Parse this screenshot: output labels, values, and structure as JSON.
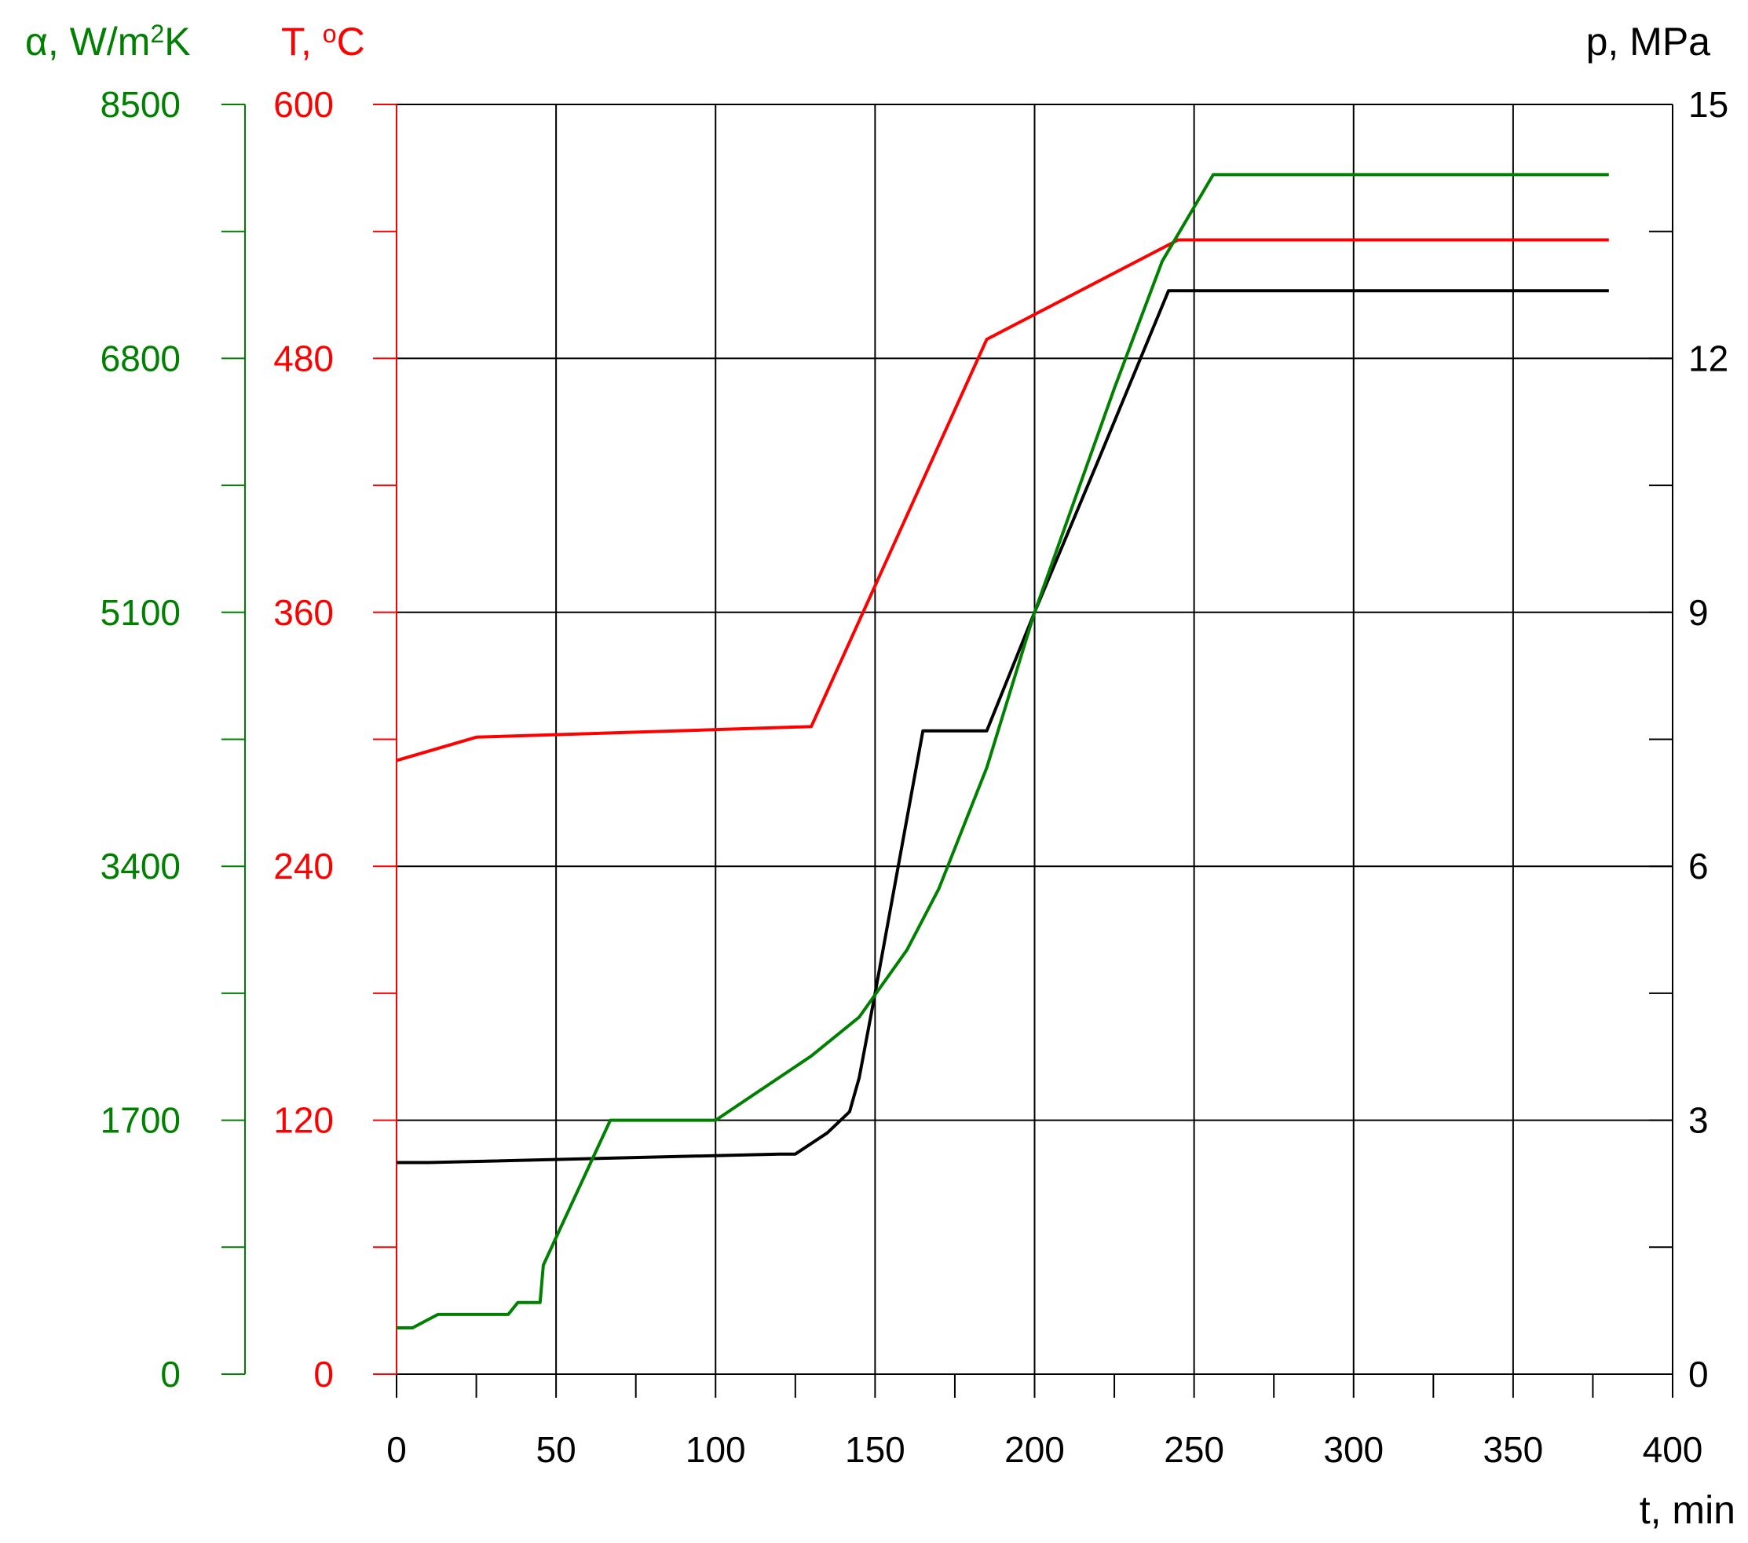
{
  "chart_data": {
    "type": "line",
    "title": "",
    "colors": {
      "alpha": "#008000",
      "temperature": "#ff0000",
      "pressure": "#000000",
      "grid": "#000000"
    },
    "grid": true,
    "x_axis": {
      "label": "t, min",
      "range": [
        0,
        400
      ],
      "ticks": [
        "0",
        "50",
        "100",
        "150",
        "200",
        "250",
        "300",
        "350",
        "400"
      ],
      "minor_step": 25
    },
    "y_axes": {
      "alpha": {
        "label_main": "α, W/m",
        "label_sup": "2",
        "label_tail": "K",
        "range": [
          0,
          8500
        ],
        "ticks": [
          "0",
          "1700",
          "3400",
          "5100",
          "6800",
          "8500"
        ],
        "minor_step": 850
      },
      "temperature": {
        "label_main": "T, ",
        "label_sup": "o",
        "label_tail": "C",
        "range": [
          0,
          600
        ],
        "ticks": [
          "0",
          "120",
          "240",
          "360",
          "480",
          "600"
        ],
        "minor_step": 60
      },
      "pressure": {
        "label": "p, MPa",
        "range": [
          0,
          15
        ],
        "ticks": [
          "0",
          "3",
          "6",
          "9",
          "12",
          "15"
        ],
        "minor_step": 1.5
      }
    },
    "series": [
      {
        "key": "temperature",
        "axis": "temperature",
        "x": [
          0,
          25,
          130,
          185,
          245,
          380
        ],
        "y": [
          290,
          301,
          306,
          489,
          536,
          536
        ]
      },
      {
        "key": "pressure",
        "axis": "pressure",
        "x": [
          0,
          10,
          120,
          125,
          135,
          142,
          145,
          150,
          165,
          185,
          200,
          220,
          242,
          380
        ],
        "y": [
          2.5,
          2.5,
          2.6,
          2.6,
          2.85,
          3.1,
          3.5,
          4.5,
          7.6,
          7.6,
          9.0,
          10.8,
          12.8,
          12.8
        ]
      },
      {
        "key": "alpha",
        "axis": "alpha",
        "x": [
          0,
          5,
          13,
          35,
          38,
          45,
          46,
          67,
          100,
          130,
          145,
          160,
          170,
          185,
          200,
          225,
          240,
          256,
          380
        ],
        "y": [
          310,
          310,
          400,
          400,
          480,
          480,
          730,
          1700,
          1700,
          2130,
          2390,
          2840,
          3250,
          4060,
          5100,
          6600,
          7450,
          8030,
          8030
        ]
      }
    ]
  }
}
